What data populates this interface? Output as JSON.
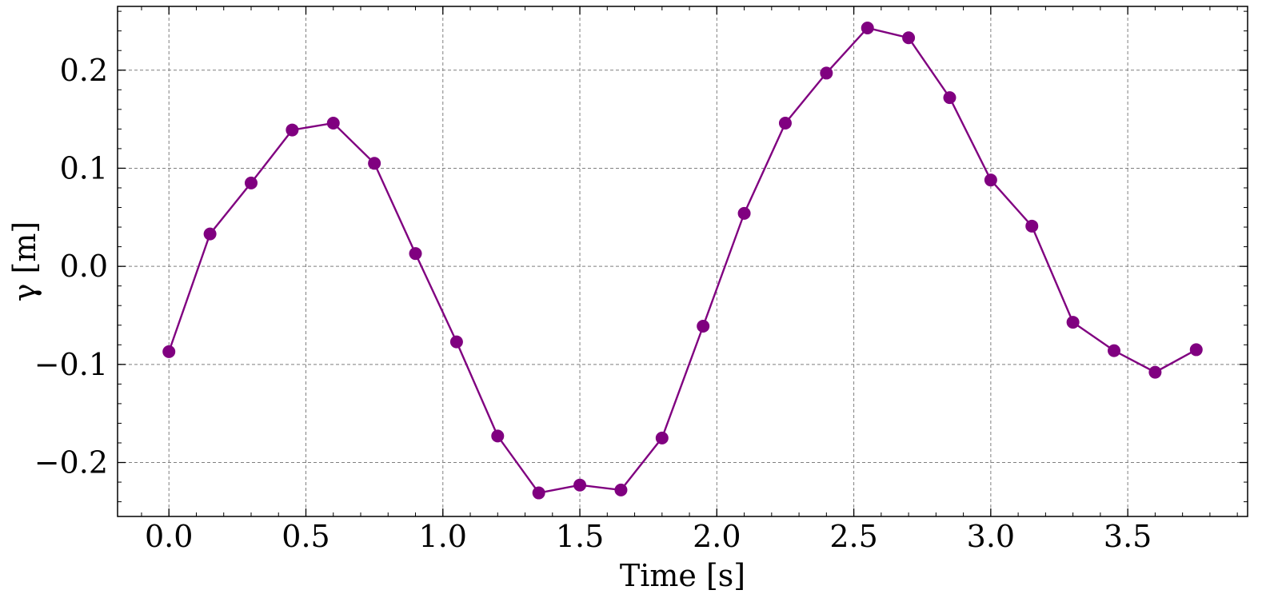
{
  "chart_data": {
    "type": "line",
    "xlabel": "Time [s]",
    "ylabel": "γ [m]",
    "xlim": [
      -0.1875,
      3.9375
    ],
    "ylim": [
      -0.255,
      0.265
    ],
    "xticks": [
      0.0,
      0.5,
      1.0,
      1.5,
      2.0,
      2.5,
      3.0,
      3.5
    ],
    "xtick_labels": [
      "0.0",
      "0.5",
      "1.0",
      "1.5",
      "2.0",
      "2.5",
      "3.0",
      "3.5"
    ],
    "yticks": [
      -0.2,
      -0.1,
      0.0,
      0.1,
      0.2
    ],
    "ytick_labels": [
      "−0.2",
      "−0.1",
      "0.0",
      "0.1",
      "0.2"
    ],
    "grid": true,
    "series": [
      {
        "color": "#800080",
        "marker": "circle",
        "x": [
          0.0,
          0.15,
          0.3,
          0.45,
          0.6,
          0.75,
          0.9,
          1.05,
          1.2,
          1.35,
          1.5,
          1.65,
          1.8,
          1.95,
          2.1,
          2.25,
          2.4,
          2.55,
          2.7,
          2.85,
          3.0,
          3.15,
          3.3,
          3.45,
          3.6,
          3.75
        ],
        "y": [
          -0.087,
          0.033,
          0.085,
          0.139,
          0.146,
          0.105,
          0.013,
          -0.077,
          -0.173,
          -0.231,
          -0.223,
          -0.228,
          -0.175,
          -0.061,
          0.054,
          0.146,
          0.197,
          0.243,
          0.233,
          0.172,
          0.088,
          0.041,
          -0.057,
          -0.086,
          -0.108,
          -0.085
        ]
      }
    ]
  }
}
